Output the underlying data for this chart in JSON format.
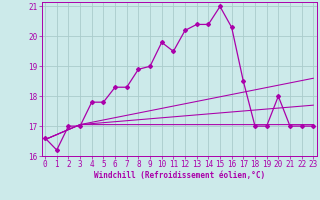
{
  "xlabel": "Windchill (Refroidissement éolien,°C)",
  "bg_color": "#cceaea",
  "line_color": "#aa00aa",
  "grid_color": "#aacccc",
  "xmin": 0,
  "xmax": 23,
  "ymin": 16,
  "ymax": 21,
  "yticks": [
    16,
    17,
    18,
    19,
    20,
    21
  ],
  "xticks": [
    0,
    1,
    2,
    3,
    4,
    5,
    6,
    7,
    8,
    9,
    10,
    11,
    12,
    13,
    14,
    15,
    16,
    17,
    18,
    19,
    20,
    21,
    22,
    23
  ],
  "main_x": [
    0,
    1,
    2,
    3,
    4,
    5,
    6,
    7,
    8,
    9,
    10,
    11,
    12,
    13,
    14,
    15,
    16,
    17,
    18,
    19,
    20,
    21,
    22,
    23
  ],
  "main_y": [
    16.6,
    16.2,
    17.0,
    17.0,
    17.8,
    17.8,
    18.3,
    18.3,
    18.9,
    19.0,
    19.8,
    19.5,
    20.2,
    20.4,
    20.4,
    21.0,
    20.3,
    18.5,
    17.0,
    17.0,
    18.0,
    17.0,
    17.0,
    17.0
  ],
  "ref_lines": [
    {
      "x": [
        0,
        3,
        23
      ],
      "y": [
        16.55,
        17.05,
        17.05
      ]
    },
    {
      "x": [
        0,
        3,
        23
      ],
      "y": [
        16.55,
        17.05,
        17.7
      ]
    },
    {
      "x": [
        0,
        3,
        23
      ],
      "y": [
        16.55,
        17.05,
        18.6
      ]
    }
  ],
  "tick_fontsize": 5.5,
  "xlabel_fontsize": 5.5,
  "marker": "D",
  "markersize": 2.0,
  "linewidth": 0.9
}
